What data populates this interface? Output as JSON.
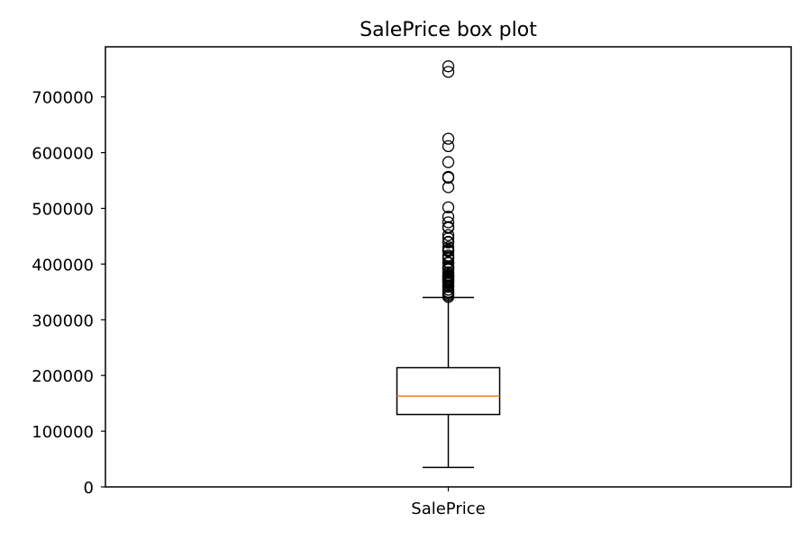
{
  "chart_data": {
    "type": "box",
    "title": "SalePrice box plot",
    "xlabel": "",
    "ylabel": "",
    "categories": [
      "SalePrice"
    ],
    "ylim": [
      0,
      790000
    ],
    "yticks": [
      0,
      100000,
      200000,
      300000,
      400000,
      500000,
      600000,
      700000
    ],
    "ytick_labels": [
      "0",
      "100000",
      "200000",
      "300000",
      "400000",
      "500000",
      "600000",
      "700000"
    ],
    "grid": false,
    "legend": "none",
    "box": {
      "whisker_low": 34900,
      "q1": 129975,
      "median": 163000,
      "q3": 214000,
      "whisker_high": 340000,
      "outliers": [
        755000,
        745000,
        625000,
        611657,
        582933,
        556581,
        555000,
        538000,
        501837,
        485000,
        475000,
        466500,
        465000,
        451950,
        446261,
        440000,
        438780,
        430000,
        426000,
        424870,
        423000,
        415298,
        412500,
        410000,
        402861,
        402000,
        395192,
        394617,
        392500,
        392000,
        390000,
        385000,
        383970,
        381000,
        380000,
        378500,
        377500,
        377426,
        375000,
        374000,
        372500,
        372402,
        370878,
        369900,
        368500,
        367294,
        366000,
        361919,
        360000,
        359100,
        354000,
        350000,
        348000,
        345000,
        344133,
        341000
      ]
    },
    "colors": {
      "box": "#000000",
      "median": "#ff7f0e",
      "whisker": "#000000",
      "outlier": "#000000",
      "frame": "#000000",
      "background": "#ffffff"
    }
  }
}
